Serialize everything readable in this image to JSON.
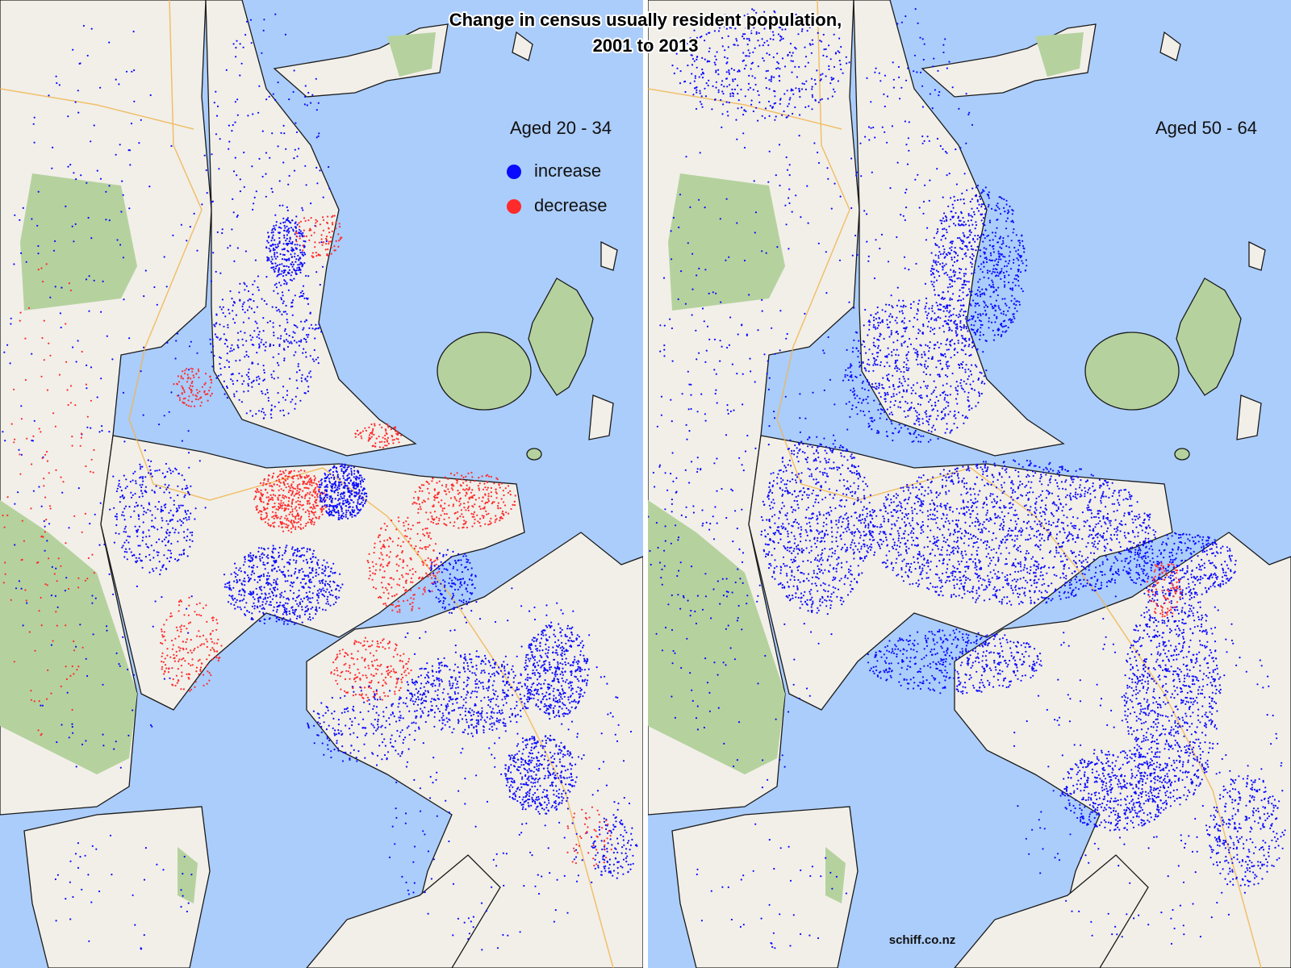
{
  "title_lines": [
    "Change in census usually resident population,",
    "2001 to 2013"
  ],
  "panels": [
    {
      "label": "Aged 20 - 34"
    },
    {
      "label": "Aged 50 - 64"
    }
  ],
  "legend": [
    {
      "name": "increase",
      "color": "#0a0aff"
    },
    {
      "name": "decrease",
      "color": "#ff2a2a"
    }
  ],
  "credit": "schiff.co.nz"
}
